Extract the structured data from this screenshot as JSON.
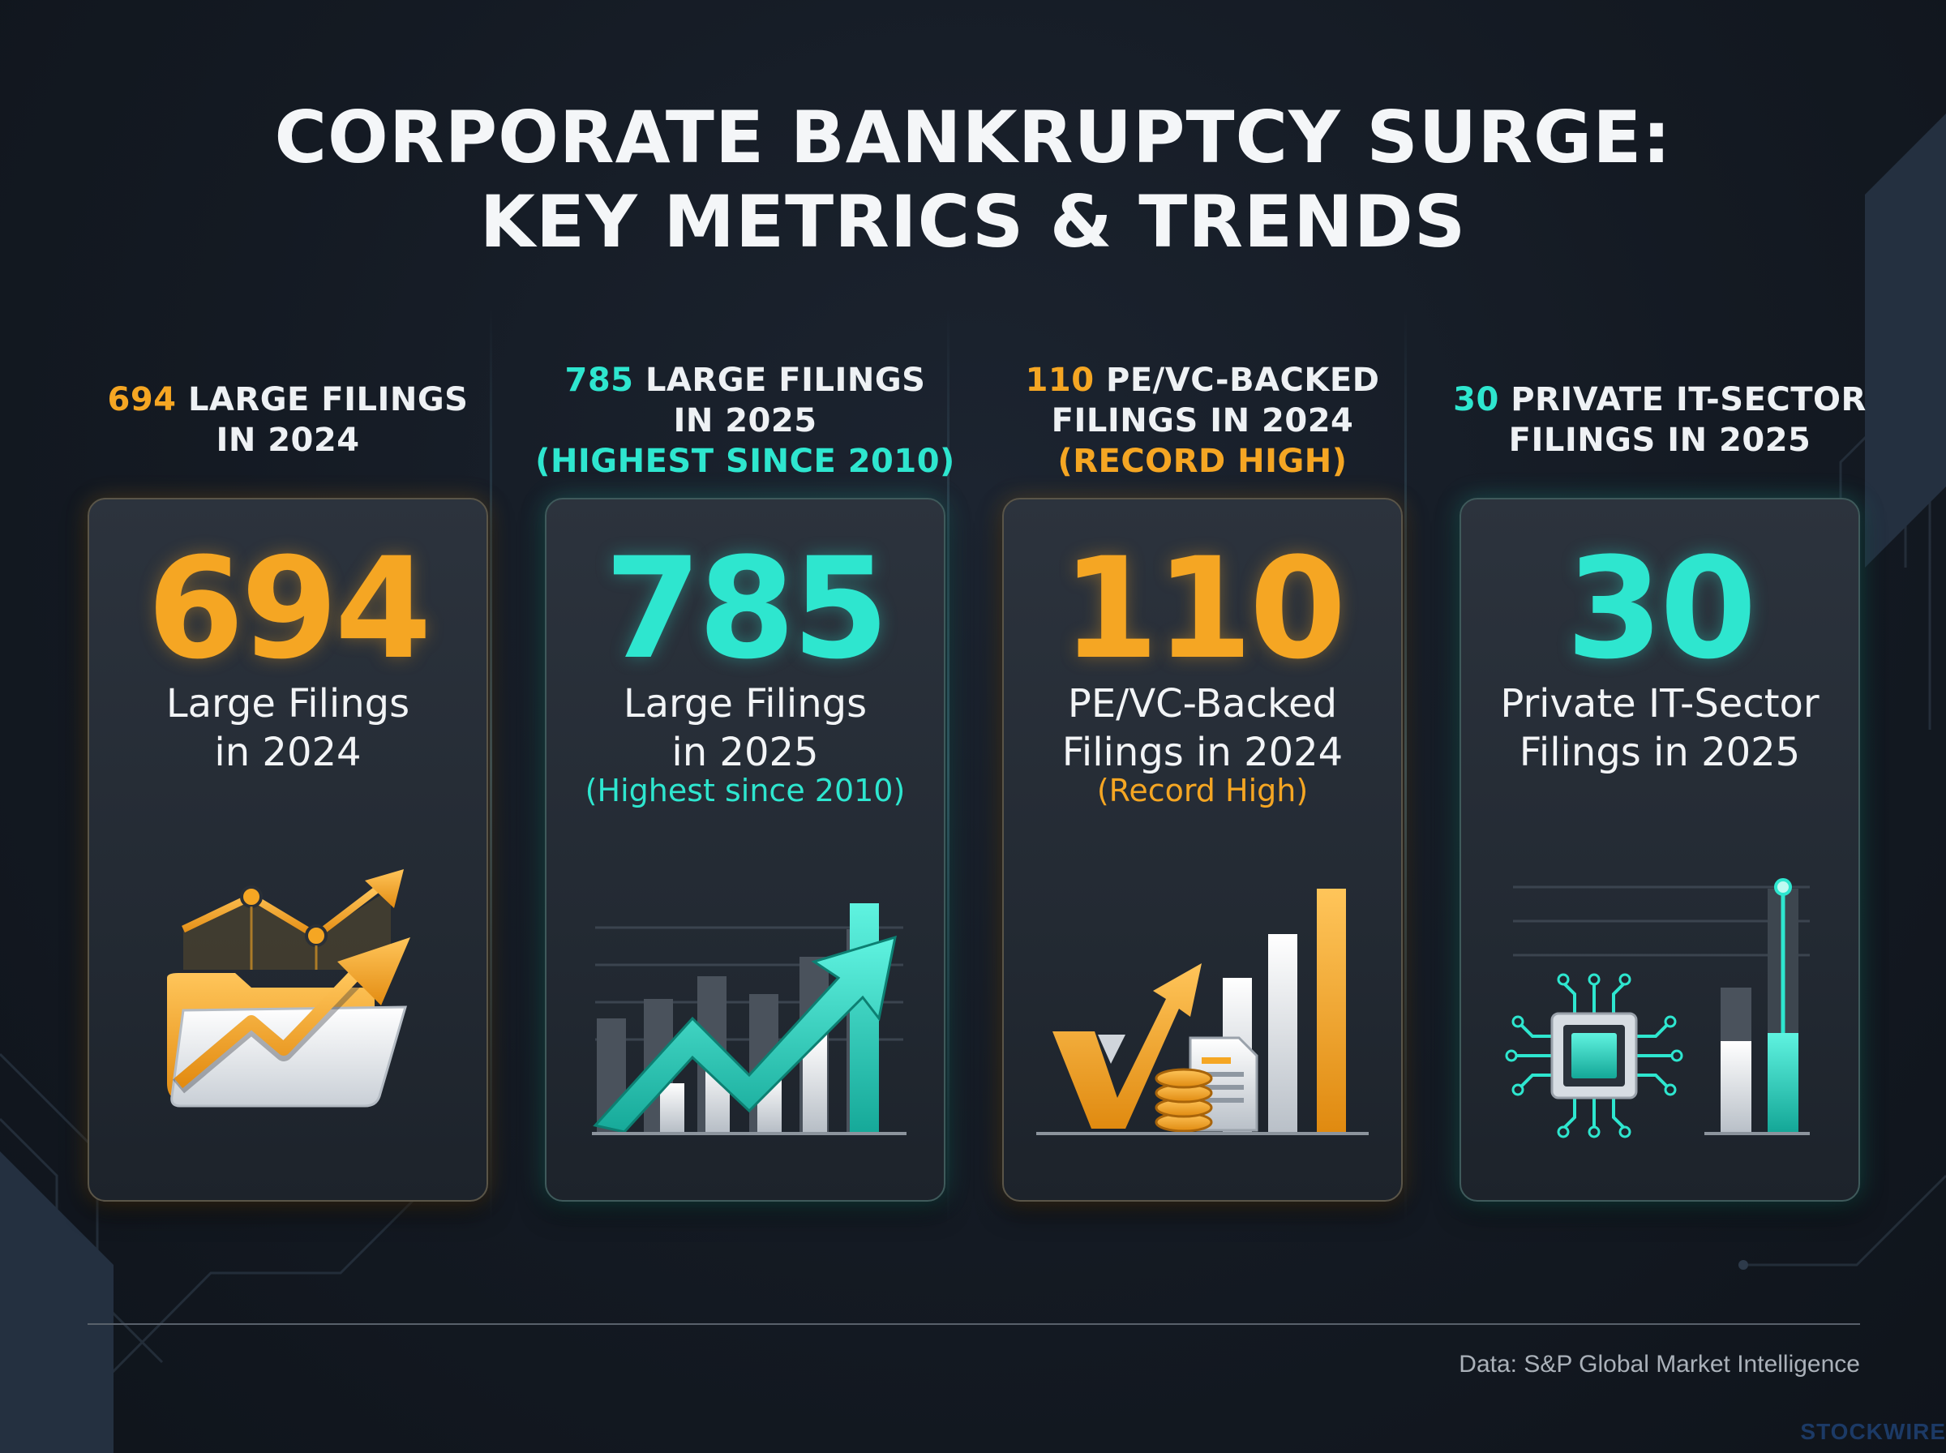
{
  "title": {
    "line1": "CORPORATE BANKRUPTCY SURGE:",
    "line2": "KEY METRICS & TRENDS"
  },
  "columns": [
    {
      "header_number": "694",
      "header_rest_line1": " LARGE FILINGS",
      "header_line2": "IN 2024",
      "header_note": "",
      "accent": "#f5a623",
      "big_number": "694",
      "label_line1": "Large Filings",
      "label_line2": "in 2024",
      "note": "",
      "icon": "folder-growth-chart-icon"
    },
    {
      "header_number": "785",
      "header_rest_line1": " LARGE FILINGS",
      "header_line2": "IN 2025",
      "header_note": "(HIGHEST SINCE 2010)",
      "accent": "#2ee6cf",
      "big_number": "785",
      "label_line1": "Large Filings",
      "label_line2": "in 2025",
      "note": "(Highest since 2010)",
      "icon": "rising-bar-chart-arrow-icon"
    },
    {
      "header_number": "110",
      "header_rest_line1": " PE/VC-BACKED",
      "header_line2": "FILINGS IN 2024",
      "header_note": "(RECORD HIGH)",
      "accent": "#f5a623",
      "big_number": "110",
      "label_line1": "PE/VC-Backed",
      "label_line2": "Filings in 2024",
      "note": "(Record High)",
      "icon": "vc-document-coins-bars-icon"
    },
    {
      "header_number": "30",
      "header_rest_line1": " PRIVATE IT-SECTOR",
      "header_line2": "FILINGS IN 2025",
      "header_note": "",
      "accent": "#2ee6cf",
      "big_number": "30",
      "label_line1": "Private IT-Sector",
      "label_line2": "Filings in 2025",
      "note": "",
      "icon": "microchip-bar-icon"
    }
  ],
  "footer": {
    "source": "Data: S&P Global Market Intelligence",
    "brand": "STOCKWIRE"
  }
}
